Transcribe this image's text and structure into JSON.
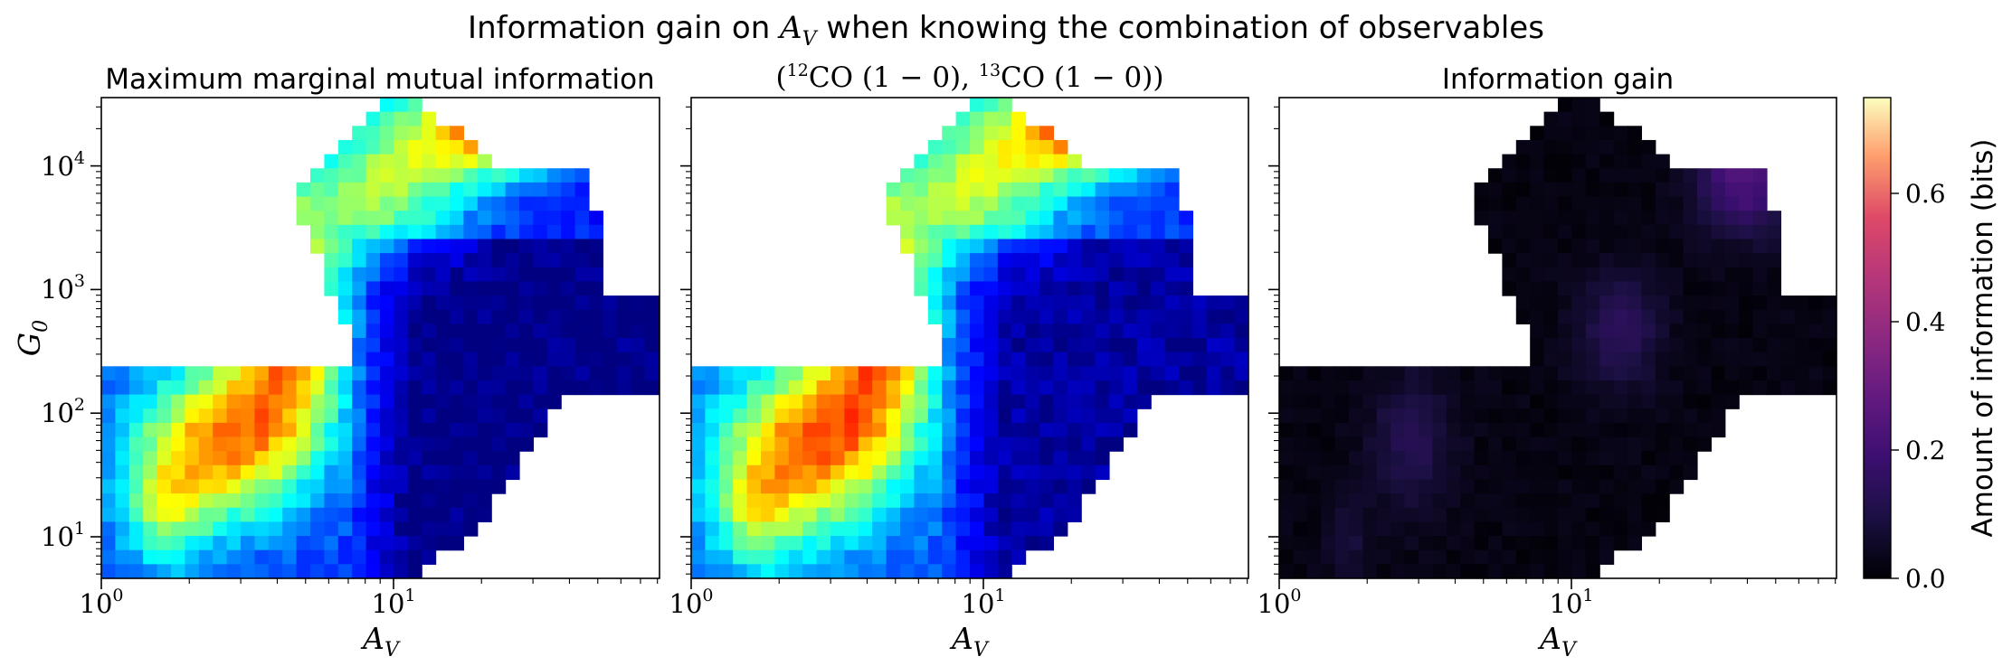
{
  "figure": {
    "suptitle_prefix": "Information gain on ",
    "suptitle_var": "A",
    "suptitle_var_sub": "V",
    "suptitle_suffix": " when knowing the combination of observables"
  },
  "chart_data": [
    {
      "type": "heatmap",
      "title": "Maximum marginal mutual information",
      "xlabel": "A_V",
      "ylabel": "G_0",
      "xscale": "log",
      "yscale": "log",
      "xlim": [
        1,
        80
      ],
      "ylim": [
        5,
        35000
      ],
      "colormap": "jet",
      "color_range": [
        0,
        1
      ],
      "colorbar": false,
      "x_ticks": [
        "10^0",
        "10^1"
      ],
      "y_ticks": [
        "10^1",
        "10^2",
        "10^3",
        "10^4"
      ]
    },
    {
      "type": "heatmap",
      "title": "(12CO (1−0), 13CO (1−0))",
      "title_parts": [
        "(",
        "12",
        "CO (1 − 0), ",
        "13",
        "CO (1 − 0))"
      ],
      "xlabel": "A_V",
      "xscale": "log",
      "yscale": "log",
      "xlim": [
        1,
        80
      ],
      "ylim": [
        5,
        35000
      ],
      "colormap": "jet",
      "color_range": [
        0,
        1
      ],
      "colorbar": false,
      "x_ticks": [
        "10^0",
        "10^1"
      ]
    },
    {
      "type": "heatmap",
      "title": "Information gain",
      "xlabel": "A_V",
      "xscale": "log",
      "yscale": "log",
      "xlim": [
        1,
        80
      ],
      "ylim": [
        5,
        35000
      ],
      "colormap": "magma",
      "color_range": [
        0,
        0.75
      ],
      "colorbar": true,
      "colorbar_label": "Amount of information (bits)",
      "colorbar_ticks": [
        "0.0",
        "0.2",
        "0.4",
        "0.6"
      ],
      "colorbar_tick_values": [
        0,
        0.2,
        0.4,
        0.6
      ],
      "x_ticks": [
        "10^0",
        "10^1"
      ]
    }
  ],
  "colors": {
    "jet_low": "#0a1ad8",
    "jet_mid": "#29dce0",
    "jet_high": "#9cf050",
    "magma_low": "#000004",
    "magma_high": "#fcfdbf"
  }
}
